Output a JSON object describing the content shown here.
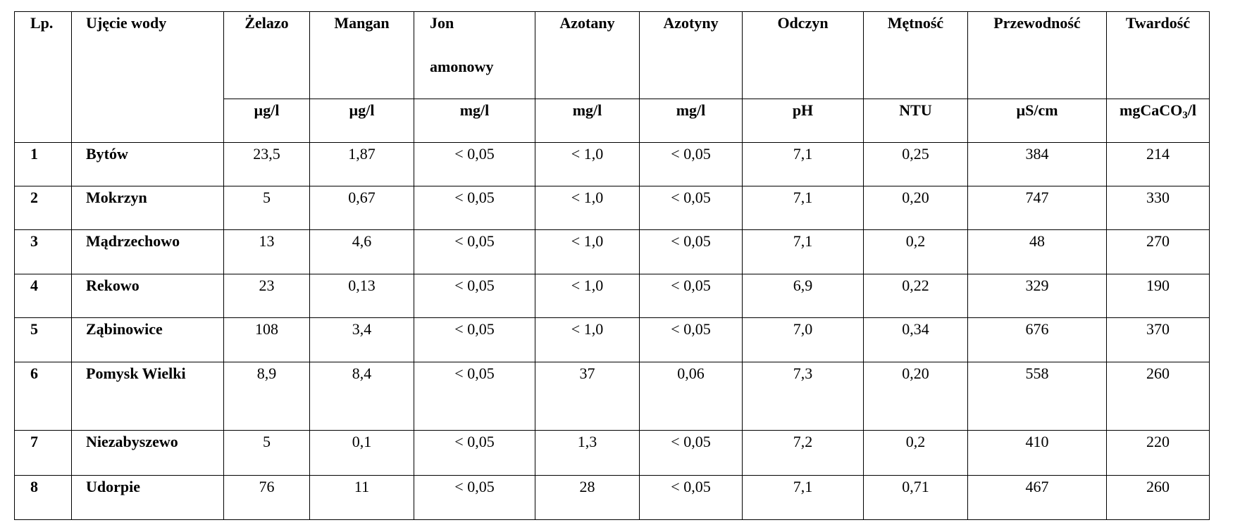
{
  "table": {
    "headers": {
      "lp": "Lp.",
      "ujecie": "Ujęcie wody",
      "zelazo": "Żelazo",
      "mangan": "Mangan",
      "jon_line1": "Jon",
      "jon_line2": "amonowy",
      "azotany": "Azotany",
      "azotyny": "Azotyny",
      "odczyn": "Odczyn",
      "metnosc": "Mętność",
      "przewodnosc": "Przewodność",
      "twardosc": "Twardość"
    },
    "units": {
      "zelazo": "µg/l",
      "mangan": "µg/l",
      "jon": "mg/l",
      "azotany": "mg/l",
      "azotyny": "mg/l",
      "odczyn": "pH",
      "metnosc": "NTU",
      "przewodnosc": "µS/cm",
      "twardosc_prefix": "mgCaCO",
      "twardosc_sub": "3",
      "twardosc_suffix": "/l"
    },
    "rows": [
      {
        "lp": "1",
        "ujecie": "Bytów",
        "zelazo": "23,5",
        "mangan": "1,87",
        "jon": "< 0,05",
        "azotany": "< 1,0",
        "azotyny": "< 0,05",
        "odczyn": "7,1",
        "metnosc": "0,25",
        "przewodnosc": "384",
        "twardosc": "214"
      },
      {
        "lp": "2",
        "ujecie": "Mokrzyn",
        "zelazo": "5",
        "mangan": "0,67",
        "jon": "< 0,05",
        "azotany": "< 1,0",
        "azotyny": "< 0,05",
        "odczyn": "7,1",
        "metnosc": "0,20",
        "przewodnosc": "747",
        "twardosc": "330"
      },
      {
        "lp": "3",
        "ujecie": "Mądrzechowo",
        "zelazo": "13",
        "mangan": "4,6",
        "jon": "< 0,05",
        "azotany": "< 1,0",
        "azotyny": "< 0,05",
        "odczyn": "7,1",
        "metnosc": "0,2",
        "przewodnosc": "48",
        "twardosc": "270"
      },
      {
        "lp": "4",
        "ujecie": "Rekowo",
        "zelazo": "23",
        "mangan": "0,13",
        "jon": "< 0,05",
        "azotany": "< 1,0",
        "azotyny": "< 0,05",
        "odczyn": "6,9",
        "metnosc": "0,22",
        "przewodnosc": "329",
        "twardosc": "190"
      },
      {
        "lp": "5",
        "ujecie": "Ząbinowice",
        "zelazo": "108",
        "mangan": "3,4",
        "jon": "< 0,05",
        "azotany": "< 1,0",
        "azotyny": "< 0,05",
        "odczyn": "7,0",
        "metnosc": "0,34",
        "przewodnosc": "676",
        "twardosc": "370"
      },
      {
        "lp": "6",
        "ujecie": "Pomysk Wielki",
        "zelazo": "8,9",
        "mangan": "8,4",
        "jon": "< 0,05",
        "azotany": "37",
        "azotyny": "0,06",
        "odczyn": "7,3",
        "metnosc": "0,20",
        "przewodnosc": "558",
        "twardosc": "260"
      },
      {
        "lp": "7",
        "ujecie": "Niezabyszewo",
        "zelazo": "5",
        "mangan": "0,1",
        "jon": "< 0,05",
        "azotany": "1,3",
        "azotyny": "< 0,05",
        "odczyn": "7,2",
        "metnosc": "0,2",
        "przewodnosc": "410",
        "twardosc": "220"
      },
      {
        "lp": "8",
        "ujecie": "Udorpie",
        "zelazo": "76",
        "mangan": "11",
        "jon": "< 0,05",
        "azotany": "28",
        "azotyny": "< 0,05",
        "odczyn": "7,1",
        "metnosc": "0,71",
        "przewodnosc": "467",
        "twardosc": "260"
      }
    ]
  }
}
